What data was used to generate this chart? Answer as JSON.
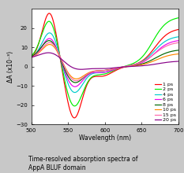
{
  "title": "Time-resolved absorption spectra of\nAppA BLUF domain",
  "xlabel": "Wavelength (nm)",
  "ylabel": "ΔA (x10⁻³)",
  "xlim": [
    500,
    700
  ],
  "ylim": [
    -30,
    30
  ],
  "xticks": [
    500,
    550,
    600,
    650,
    700
  ],
  "yticks": [
    -30,
    -20,
    -10,
    0,
    10,
    20
  ],
  "legend_entries": [
    "1 ps",
    "2 ps",
    "4 ps",
    "6 ps",
    "8 ps",
    "10 ps",
    "15 ps",
    "20 ps"
  ],
  "colors": [
    "#ff0000",
    "#00ee00",
    "#00cccc",
    "#ee00ee",
    "#006600",
    "#ff8800",
    "#ff66aa",
    "#880088"
  ],
  "fig_facecolor": "#c8c8c8",
  "ax_facecolor": "#ffffff",
  "spine_color": "#000000",
  "title_fontsize": 5.5,
  "label_fontsize": 5.5,
  "tick_fontsize": 5,
  "legend_fontsize": 4.5,
  "linewidth": 0.85,
  "params": {
    "1 ps": {
      "p1a": 25,
      "p1c": 525,
      "p1w": 10,
      "p2a": -27,
      "p2c": 558,
      "p2w": 11,
      "p3a": -5,
      "p3c": 595,
      "p3w": 15,
      "ra": 20,
      "rc": 668,
      "rw": 10
    },
    "2 ps": {
      "p1a": 21,
      "p1c": 525,
      "p1w": 11,
      "p2a": -21,
      "p2c": 558,
      "p2w": 12,
      "p3a": -4,
      "p3c": 595,
      "p3w": 15,
      "ra": 26,
      "rc": 665,
      "rw": 10
    },
    "4 ps": {
      "p1a": 15,
      "p1c": 526,
      "p1w": 11,
      "p2a": -14,
      "p2c": 558,
      "p2w": 12,
      "p3a": -3,
      "p3c": 595,
      "p3w": 15,
      "ra": 16,
      "rc": 667,
      "rw": 10
    },
    "6 ps": {
      "p1a": 12,
      "p1c": 526,
      "p1w": 11,
      "p2a": -11,
      "p2c": 558,
      "p2w": 12,
      "p3a": -3,
      "p3c": 596,
      "p3w": 15,
      "ra": 14,
      "rc": 668,
      "rw": 10
    },
    "8 ps": {
      "p1a": 11,
      "p1c": 526,
      "p1w": 12,
      "p2a": -9,
      "p2c": 558,
      "p2w": 13,
      "p3a": -2,
      "p3c": 596,
      "p3w": 15,
      "ra": 9,
      "rc": 669,
      "rw": 11
    },
    "10 ps": {
      "p1a": 9,
      "p1c": 527,
      "p1w": 12,
      "p2a": -7,
      "p2c": 559,
      "p2w": 13,
      "p3a": -2,
      "p3c": 597,
      "p3w": 15,
      "ra": 7,
      "rc": 670,
      "rw": 11
    },
    "15 ps": {
      "p1a": 10,
      "p1c": 527,
      "p1w": 12,
      "p2a": -8,
      "p2c": 559,
      "p2w": 13,
      "p3a": -2,
      "p3c": 597,
      "p3w": 15,
      "ra": 13,
      "rc": 667,
      "rw": 11
    },
    "20 ps": {
      "p1a": 4.5,
      "p1c": 528,
      "p1w": 15,
      "p2a": -2,
      "p2c": 560,
      "p2w": 14,
      "p3a": -1,
      "p3c": 598,
      "p3w": 16,
      "ra": 3,
      "rc": 672,
      "rw": 12
    }
  }
}
